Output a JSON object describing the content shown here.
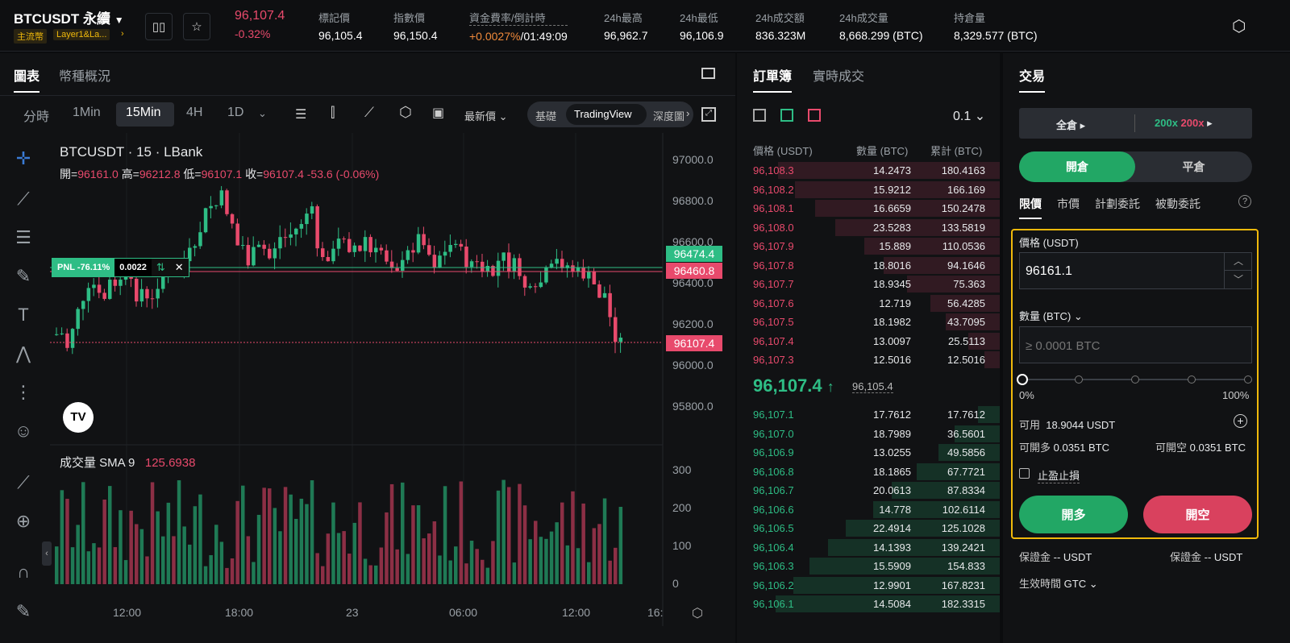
{
  "header": {
    "symbol": "BTCUSDT 永續",
    "tags": [
      "主流幣",
      "Layer1&La..."
    ],
    "price": "96,107.4",
    "change": "-0.32%",
    "stats": [
      {
        "label": "標記價",
        "value": "96,105.4"
      },
      {
        "label": "指數價",
        "value": "96,150.4"
      },
      {
        "label": "資金費率/倒計時",
        "value_a": "+0.0027%",
        "value_b": "/01:49:09"
      },
      {
        "label": "24h最高",
        "value": "96,962.7"
      },
      {
        "label": "24h最低",
        "value": "96,106.9"
      },
      {
        "label": "24h成交額",
        "value": "836.323M"
      },
      {
        "label": "24h成交量",
        "value": "8,668.299 (BTC)"
      },
      {
        "label": "持倉量",
        "value": "8,329.577 (BTC)"
      }
    ]
  },
  "chart": {
    "tabs": [
      "圖表",
      "幣種概況"
    ],
    "timeframes": [
      "分時",
      "1Min",
      "15Min",
      "4H",
      "1D"
    ],
    "price_type": "最新價",
    "views": [
      "基礎",
      "TradingView",
      "深度圖"
    ],
    "title": "BTCUSDT · 15 · LBank",
    "ohlc": {
      "o_label": "開=",
      "o": "96161.0",
      "h_label": "高=",
      "h": "96212.8",
      "l_label": "低=",
      "l": "96107.1",
      "c_label": "收=",
      "c": "96107.4",
      "chg": "-53.6 (-0.06%)"
    },
    "pnl_label": "PNL -76.11%",
    "pnl_qty": "0.0022",
    "price_ticks": [
      "97000.0",
      "96800.0",
      "96600.0",
      "96400.0",
      "96200.0",
      "96000.0",
      "95800.0"
    ],
    "price_tags": {
      "a": "96474.4",
      "b": "96460.8",
      "last": "96107.4"
    },
    "volume_label": "成交量 SMA 9",
    "volume_value": "125.6938",
    "volume_ticks": [
      "300",
      "200",
      "100",
      "0"
    ],
    "time_ticks": [
      "12:00",
      "18:00",
      "23",
      "06:00",
      "12:00",
      "16:"
    ]
  },
  "orderbook": {
    "tabs": [
      "訂單簿",
      "實時成交"
    ],
    "precision": "0.1",
    "headers": [
      "價格 (USDT)",
      "數量 (BTC)",
      "累計 (BTC)"
    ],
    "asks": [
      [
        "96,108.3",
        "14.2473",
        "180.4163"
      ],
      [
        "96,108.2",
        "15.9212",
        "166.169"
      ],
      [
        "96,108.1",
        "16.6659",
        "150.2478"
      ],
      [
        "96,108.0",
        "23.5283",
        "133.5819"
      ],
      [
        "96,107.9",
        "15.889",
        "110.0536"
      ],
      [
        "96,107.8",
        "18.8016",
        "94.1646"
      ],
      [
        "96,107.7",
        "18.9345",
        "75.363"
      ],
      [
        "96,107.6",
        "12.719",
        "56.4285"
      ],
      [
        "96,107.5",
        "18.1982",
        "43.7095"
      ],
      [
        "96,107.4",
        "13.0097",
        "25.5113"
      ],
      [
        "96,107.3",
        "12.5016",
        "12.5016"
      ]
    ],
    "last_price": "96,107.4",
    "arrow": "↑",
    "mark_price": "96,105.4",
    "bids": [
      [
        "96,107.1",
        "17.7612",
        "17.7612"
      ],
      [
        "96,107.0",
        "18.7989",
        "36.5601"
      ],
      [
        "96,106.9",
        "13.0255",
        "49.5856"
      ],
      [
        "96,106.8",
        "18.1865",
        "67.7721"
      ],
      [
        "96,106.7",
        "20.0613",
        "87.8334"
      ],
      [
        "96,106.6",
        "14.778",
        "102.6114"
      ],
      [
        "96,106.5",
        "22.4914",
        "125.1028"
      ],
      [
        "96,106.4",
        "14.1393",
        "139.2421"
      ],
      [
        "96,106.3",
        "15.5909",
        "154.833"
      ],
      [
        "96,106.2",
        "12.9901",
        "167.8231"
      ],
      [
        "96,106.1",
        "14.5084",
        "182.3315"
      ]
    ]
  },
  "trade": {
    "title": "交易",
    "margin": "全倉",
    "lev_long": "200x",
    "lev_short": "200x",
    "open": "開倉",
    "close": "平倉",
    "order_types": [
      "限價",
      "市價",
      "計劃委託",
      "被動委託"
    ],
    "price_label": "價格 (USDT)",
    "price_value": "96161.1",
    "qty_label": "數量 (BTC)",
    "qty_placeholder": "≥ 0.0001 BTC",
    "slider_min": "0%",
    "slider_max": "100%",
    "avail_label": "可用",
    "avail": "18.9044 USDT",
    "long_avail_label": "可開多",
    "long_avail": "0.0351 BTC",
    "short_avail_label": "可開空",
    "short_avail": "0.0351 BTC",
    "tpsl": "止盈止損",
    "buy": "開多",
    "sell": "開空",
    "margin_label": "保證金",
    "margin_val": "-- USDT",
    "margin_val2": "-- USDT",
    "tif_label": "生效時間",
    "tif": "GTC"
  }
}
